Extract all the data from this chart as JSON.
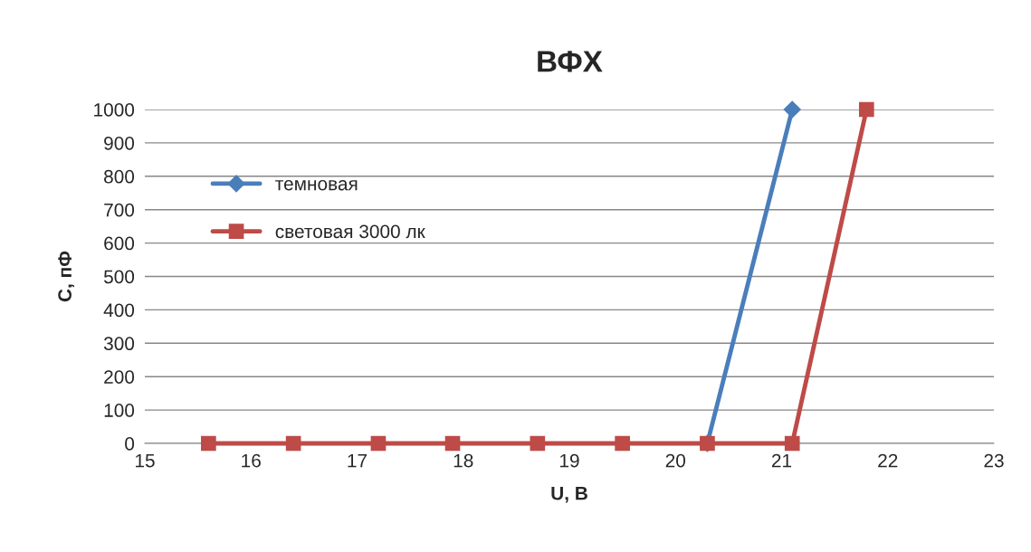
{
  "chart_data": {
    "type": "line",
    "title": "ВФХ",
    "xlabel": "U, В",
    "ylabel": "C, пФ",
    "xlim": [
      15,
      23
    ],
    "xticks": [
      15,
      16,
      17,
      18,
      19,
      20,
      21,
      22,
      23
    ],
    "ylim": [
      0,
      1000
    ],
    "yticks": [
      0,
      100,
      200,
      300,
      400,
      500,
      600,
      700,
      800,
      900,
      1000
    ],
    "grid": "y",
    "legend": "top left",
    "series": [
      {
        "name": "темновая",
        "color": "#4a7ebb",
        "marker": "diamond",
        "x": [
          20.3,
          21.1
        ],
        "values": [
          0,
          1000
        ]
      },
      {
        "name": "световая 3000 лк",
        "color": "#be4b48",
        "marker": "square",
        "x": [
          15.6,
          16.4,
          17.2,
          17.9,
          18.7,
          19.5,
          20.3,
          21.1,
          21.8
        ],
        "values": [
          0,
          0,
          0,
          0,
          0,
          0,
          0,
          0,
          1000
        ]
      }
    ]
  }
}
